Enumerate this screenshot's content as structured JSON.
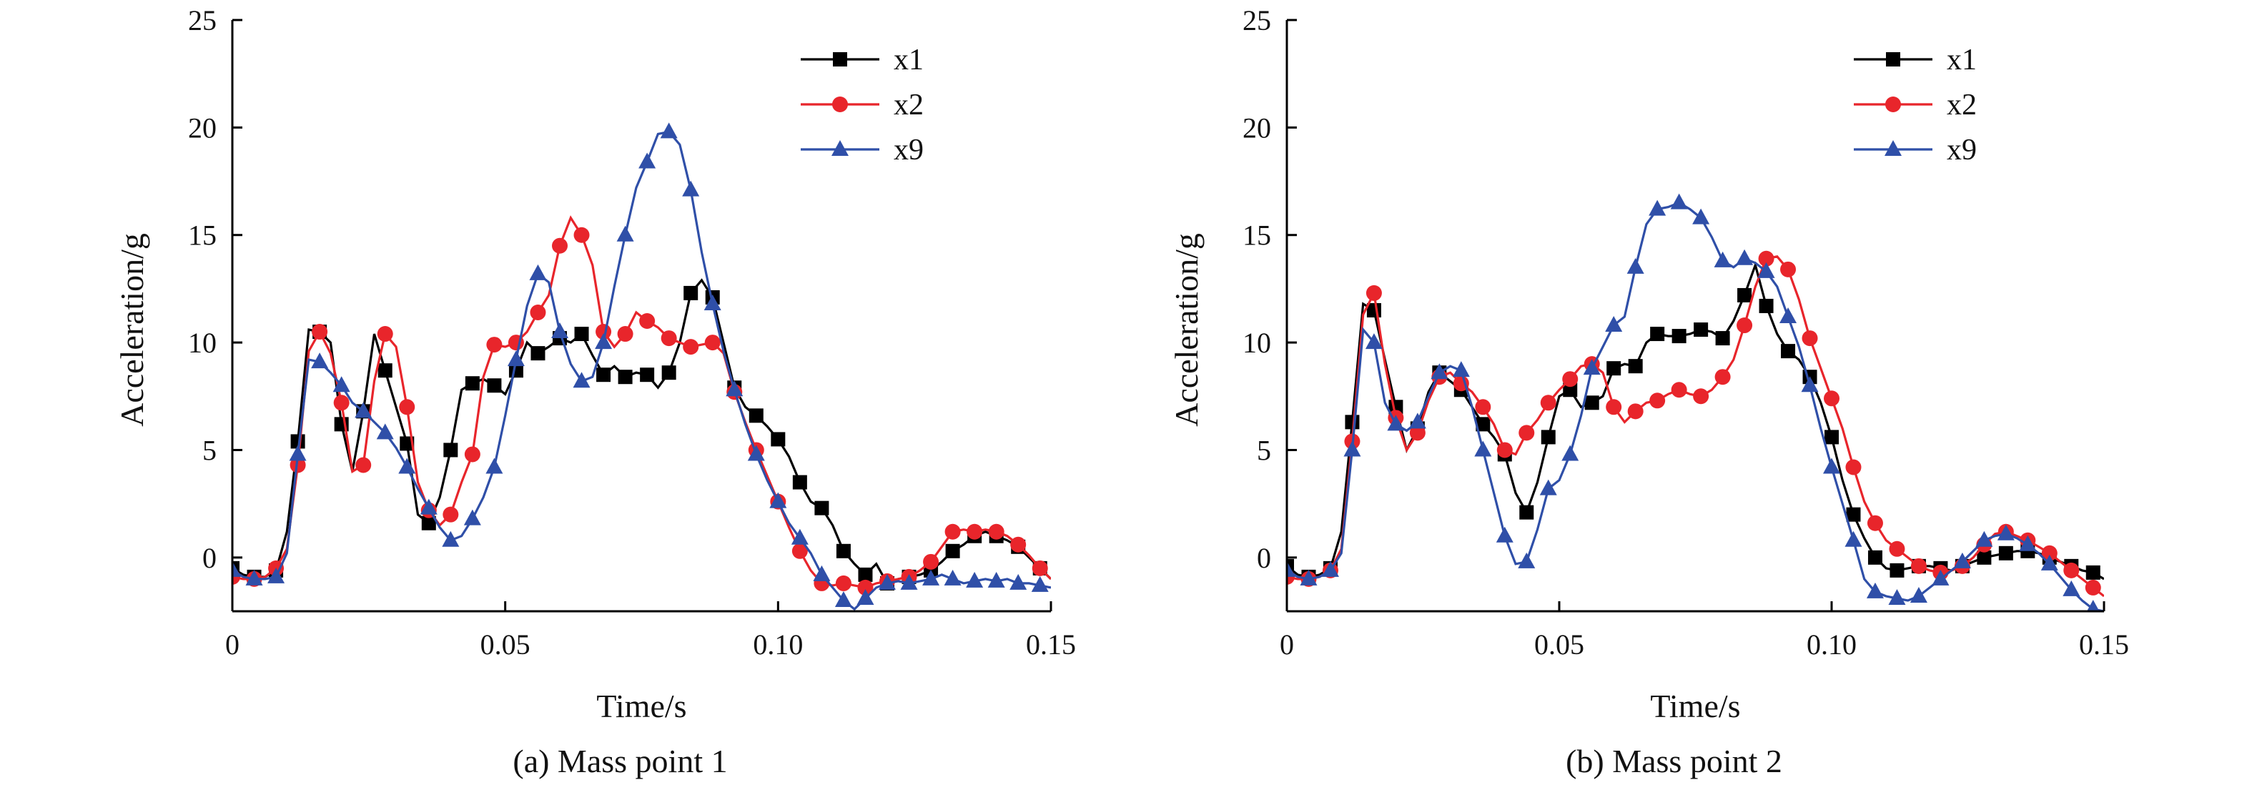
{
  "figure": {
    "colors": {
      "x1": "#000000",
      "x2": "#e8252b",
      "x9": "#2f4fa8",
      "axis": "#000000"
    }
  },
  "chart_data": [
    {
      "type": "line",
      "caption": "(a) Mass point 1",
      "xlabel": "Time/s",
      "ylabel": "Acceleration/g",
      "xlim": [
        0,
        0.15
      ],
      "ylim": [
        -2.5,
        25
      ],
      "xticks": [
        0,
        0.05,
        0.1,
        0.15
      ],
      "xtick_labels": [
        "0",
        "0.05",
        "0.10",
        "0.15"
      ],
      "yticks": [
        0,
        5,
        10,
        15,
        20,
        25
      ],
      "ytick_labels": [
        "0",
        "5",
        "10",
        "15",
        "20",
        "25"
      ],
      "grid": false,
      "legend": "top-right",
      "series": [
        {
          "name": "x1",
          "marker": "square",
          "color": "#000000",
          "x": [
            0,
            0.002,
            0.004,
            0.006,
            0.008,
            0.01,
            0.012,
            0.014,
            0.016,
            0.018,
            0.02,
            0.022,
            0.024,
            0.026,
            0.028,
            0.03,
            0.032,
            0.034,
            0.036,
            0.038,
            0.04,
            0.042,
            0.044,
            0.046,
            0.048,
            0.05,
            0.052,
            0.054,
            0.056,
            0.058,
            0.06,
            0.062,
            0.064,
            0.066,
            0.068,
            0.07,
            0.072,
            0.074,
            0.076,
            0.078,
            0.08,
            0.082,
            0.084,
            0.086,
            0.088,
            0.09,
            0.092,
            0.094,
            0.096,
            0.098,
            0.1,
            0.102,
            0.104,
            0.106,
            0.108,
            0.11,
            0.112,
            0.114,
            0.116,
            0.118,
            0.12,
            0.122,
            0.124,
            0.126,
            0.128,
            0.13,
            0.132,
            0.134,
            0.136,
            0.138,
            0.14,
            0.142,
            0.144,
            0.146,
            0.148,
            0.15
          ],
          "y": [
            -0.5,
            -0.8,
            -0.9,
            -0.9,
            -0.6,
            1.2,
            5.4,
            10.6,
            10.5,
            10.0,
            6.2,
            4.0,
            6.8,
            10.4,
            8.7,
            7.0,
            5.3,
            2.0,
            1.6,
            2.8,
            5.0,
            7.8,
            8.1,
            8.3,
            8.0,
            7.6,
            8.7,
            10.0,
            9.5,
            9.8,
            10.2,
            10.0,
            10.4,
            9.4,
            8.5,
            8.9,
            8.4,
            8.6,
            8.5,
            7.9,
            8.6,
            10.0,
            12.3,
            12.9,
            12.1,
            10.0,
            7.9,
            7.0,
            6.6,
            6.1,
            5.5,
            4.7,
            3.5,
            2.6,
            2.3,
            1.5,
            0.3,
            -0.3,
            -0.8,
            -0.3,
            -1.2,
            -1.0,
            -0.9,
            -0.8,
            -0.6,
            -0.2,
            0.3,
            0.6,
            1.0,
            1.2,
            1.0,
            0.8,
            0.5,
            0.0,
            -0.5,
            -1.0
          ]
        },
        {
          "name": "x2",
          "marker": "circle",
          "color": "#e8252b",
          "x": [
            0,
            0.002,
            0.004,
            0.006,
            0.008,
            0.01,
            0.012,
            0.014,
            0.016,
            0.018,
            0.02,
            0.022,
            0.024,
            0.026,
            0.028,
            0.03,
            0.032,
            0.034,
            0.036,
            0.038,
            0.04,
            0.042,
            0.044,
            0.046,
            0.048,
            0.05,
            0.052,
            0.054,
            0.056,
            0.058,
            0.06,
            0.062,
            0.064,
            0.066,
            0.068,
            0.07,
            0.072,
            0.074,
            0.076,
            0.078,
            0.08,
            0.082,
            0.084,
            0.086,
            0.088,
            0.09,
            0.092,
            0.094,
            0.096,
            0.098,
            0.1,
            0.102,
            0.104,
            0.106,
            0.108,
            0.11,
            0.112,
            0.114,
            0.116,
            0.118,
            0.12,
            0.122,
            0.124,
            0.126,
            0.128,
            0.13,
            0.132,
            0.134,
            0.136,
            0.138,
            0.14,
            0.142,
            0.144,
            0.146,
            0.148,
            0.15
          ],
          "y": [
            -0.9,
            -1.0,
            -1.0,
            -0.9,
            -0.5,
            0.4,
            4.3,
            9.6,
            10.5,
            9.5,
            7.2,
            4.0,
            4.3,
            8.2,
            10.4,
            9.8,
            7.0,
            3.5,
            2.2,
            1.5,
            2.0,
            3.5,
            4.8,
            8.4,
            9.9,
            9.8,
            10.0,
            10.5,
            11.4,
            12.2,
            14.5,
            15.8,
            15.0,
            13.6,
            10.5,
            9.8,
            10.4,
            11.4,
            11.0,
            10.7,
            10.2,
            10.0,
            9.8,
            9.9,
            10.0,
            9.5,
            7.7,
            6.3,
            5.0,
            3.8,
            2.6,
            1.4,
            0.3,
            -0.6,
            -1.2,
            -1.3,
            -1.2,
            -1.3,
            -1.4,
            -1.2,
            -1.1,
            -1.0,
            -0.9,
            -0.6,
            -0.2,
            0.5,
            1.2,
            1.3,
            1.2,
            1.3,
            1.2,
            1.0,
            0.6,
            0.1,
            -0.5,
            -1.0
          ]
        },
        {
          "name": "x9",
          "marker": "triangle",
          "color": "#2f4fa8",
          "x": [
            0,
            0.002,
            0.004,
            0.006,
            0.008,
            0.01,
            0.012,
            0.014,
            0.016,
            0.018,
            0.02,
            0.022,
            0.024,
            0.026,
            0.028,
            0.03,
            0.032,
            0.034,
            0.036,
            0.038,
            0.04,
            0.042,
            0.044,
            0.046,
            0.048,
            0.05,
            0.052,
            0.054,
            0.056,
            0.058,
            0.06,
            0.062,
            0.064,
            0.066,
            0.068,
            0.07,
            0.072,
            0.074,
            0.076,
            0.078,
            0.08,
            0.082,
            0.084,
            0.086,
            0.088,
            0.09,
            0.092,
            0.094,
            0.096,
            0.098,
            0.1,
            0.102,
            0.104,
            0.106,
            0.108,
            0.11,
            0.112,
            0.114,
            0.116,
            0.118,
            0.12,
            0.122,
            0.124,
            0.126,
            0.128,
            0.13,
            0.132,
            0.134,
            0.136,
            0.138,
            0.14,
            0.142,
            0.144,
            0.146,
            0.148,
            0.15
          ],
          "y": [
            -0.6,
            -0.9,
            -1.0,
            -1.0,
            -0.9,
            0.2,
            4.8,
            9.2,
            9.1,
            8.6,
            8.0,
            7.2,
            6.8,
            6.3,
            5.8,
            5.1,
            4.2,
            3.2,
            2.3,
            1.4,
            0.8,
            1.0,
            1.8,
            2.8,
            4.2,
            6.6,
            9.2,
            11.7,
            13.2,
            12.8,
            10.5,
            9.0,
            8.2,
            8.4,
            10.0,
            12.6,
            15.0,
            17.2,
            18.4,
            19.7,
            19.8,
            19.2,
            17.1,
            14.2,
            11.8,
            9.6,
            7.8,
            6.2,
            4.8,
            3.6,
            2.6,
            1.6,
            0.9,
            0.2,
            -0.8,
            -1.4,
            -2.0,
            -2.4,
            -1.9,
            -1.4,
            -1.2,
            -1.1,
            -1.2,
            -1.1,
            -1.0,
            -0.8,
            -1.0,
            -1.2,
            -1.1,
            -1.0,
            -1.1,
            -1.0,
            -1.2,
            -1.2,
            -1.3,
            -1.4
          ]
        }
      ]
    },
    {
      "type": "line",
      "caption": "(b) Mass point 2",
      "xlabel": "Time/s",
      "ylabel": "Acceleration/g",
      "xlim": [
        0,
        0.15
      ],
      "ylim": [
        -2.5,
        25
      ],
      "xticks": [
        0,
        0.05,
        0.1,
        0.15
      ],
      "xtick_labels": [
        "0",
        "0.05",
        "0.10",
        "0.15"
      ],
      "yticks": [
        0,
        5,
        10,
        15,
        20,
        25
      ],
      "ytick_labels": [
        "0",
        "5",
        "10",
        "15",
        "20",
        "25"
      ],
      "grid": false,
      "legend": "top-right",
      "series": [
        {
          "name": "x1",
          "marker": "square",
          "color": "#000000",
          "x": [
            0,
            0.002,
            0.004,
            0.006,
            0.008,
            0.01,
            0.012,
            0.014,
            0.016,
            0.018,
            0.02,
            0.022,
            0.024,
            0.026,
            0.028,
            0.03,
            0.032,
            0.034,
            0.036,
            0.038,
            0.04,
            0.042,
            0.044,
            0.046,
            0.048,
            0.05,
            0.052,
            0.054,
            0.056,
            0.058,
            0.06,
            0.062,
            0.064,
            0.066,
            0.068,
            0.07,
            0.072,
            0.074,
            0.076,
            0.078,
            0.08,
            0.082,
            0.084,
            0.086,
            0.088,
            0.09,
            0.092,
            0.094,
            0.096,
            0.098,
            0.1,
            0.102,
            0.104,
            0.106,
            0.108,
            0.11,
            0.112,
            0.114,
            0.116,
            0.118,
            0.12,
            0.122,
            0.124,
            0.126,
            0.128,
            0.13,
            0.132,
            0.134,
            0.136,
            0.138,
            0.14,
            0.142,
            0.144,
            0.146,
            0.148,
            0.15
          ],
          "y": [
            -0.4,
            -0.8,
            -0.9,
            -0.8,
            -0.5,
            1.2,
            6.3,
            11.8,
            11.5,
            9.2,
            7.0,
            5.0,
            6.0,
            7.7,
            8.6,
            8.2,
            7.8,
            7.0,
            6.2,
            5.6,
            4.8,
            3.0,
            2.1,
            3.5,
            5.6,
            7.5,
            7.8,
            7.0,
            7.2,
            7.5,
            8.8,
            9.0,
            8.9,
            10.0,
            10.4,
            10.3,
            10.3,
            10.4,
            10.6,
            10.5,
            10.2,
            11.0,
            12.2,
            13.6,
            11.7,
            10.4,
            9.6,
            9.2,
            8.4,
            7.2,
            5.6,
            3.6,
            2.0,
            0.9,
            0.0,
            -0.5,
            -0.6,
            -0.5,
            -0.4,
            -0.4,
            -0.5,
            -0.6,
            -0.4,
            -0.2,
            0.0,
            0.1,
            0.2,
            0.3,
            0.3,
            0.2,
            0.0,
            -0.2,
            -0.4,
            -0.6,
            -0.7,
            -1.0
          ]
        },
        {
          "name": "x2",
          "marker": "circle",
          "color": "#e8252b",
          "x": [
            0,
            0.002,
            0.004,
            0.006,
            0.008,
            0.01,
            0.012,
            0.014,
            0.016,
            0.018,
            0.02,
            0.022,
            0.024,
            0.026,
            0.028,
            0.03,
            0.032,
            0.034,
            0.036,
            0.038,
            0.04,
            0.042,
            0.044,
            0.046,
            0.048,
            0.05,
            0.052,
            0.054,
            0.056,
            0.058,
            0.06,
            0.062,
            0.064,
            0.066,
            0.068,
            0.07,
            0.072,
            0.074,
            0.076,
            0.078,
            0.08,
            0.082,
            0.084,
            0.086,
            0.088,
            0.09,
            0.092,
            0.094,
            0.096,
            0.098,
            0.1,
            0.102,
            0.104,
            0.106,
            0.108,
            0.11,
            0.112,
            0.114,
            0.116,
            0.118,
            0.12,
            0.122,
            0.124,
            0.126,
            0.128,
            0.13,
            0.132,
            0.134,
            0.136,
            0.138,
            0.14,
            0.142,
            0.144,
            0.146,
            0.148,
            0.15
          ],
          "y": [
            -0.9,
            -1.0,
            -1.0,
            -0.9,
            -0.6,
            0.4,
            5.4,
            11.3,
            12.3,
            9.0,
            6.5,
            5.0,
            5.8,
            7.3,
            8.4,
            8.6,
            8.1,
            7.7,
            7.0,
            6.2,
            5.0,
            4.8,
            5.8,
            6.4,
            7.2,
            7.8,
            8.3,
            8.9,
            9.0,
            8.6,
            7.0,
            6.3,
            6.8,
            7.2,
            7.3,
            7.6,
            7.8,
            7.6,
            7.5,
            7.8,
            8.4,
            9.2,
            10.8,
            12.6,
            13.9,
            14.0,
            13.4,
            12.0,
            10.2,
            8.8,
            7.4,
            6.0,
            4.2,
            2.6,
            1.6,
            0.8,
            0.4,
            0.0,
            -0.4,
            -0.6,
            -0.7,
            -0.6,
            -0.4,
            0.0,
            0.6,
            1.1,
            1.2,
            1.0,
            0.8,
            0.5,
            0.2,
            -0.2,
            -0.6,
            -1.0,
            -1.4,
            -1.8
          ]
        },
        {
          "name": "x9",
          "marker": "triangle",
          "color": "#2f4fa8",
          "x": [
            0,
            0.002,
            0.004,
            0.006,
            0.008,
            0.01,
            0.012,
            0.014,
            0.016,
            0.018,
            0.02,
            0.022,
            0.024,
            0.026,
            0.028,
            0.03,
            0.032,
            0.034,
            0.036,
            0.038,
            0.04,
            0.042,
            0.044,
            0.046,
            0.048,
            0.05,
            0.052,
            0.054,
            0.056,
            0.058,
            0.06,
            0.062,
            0.064,
            0.066,
            0.068,
            0.07,
            0.072,
            0.074,
            0.076,
            0.078,
            0.08,
            0.082,
            0.084,
            0.086,
            0.088,
            0.09,
            0.092,
            0.094,
            0.096,
            0.098,
            0.1,
            0.102,
            0.104,
            0.106,
            0.108,
            0.11,
            0.112,
            0.114,
            0.116,
            0.118,
            0.12,
            0.122,
            0.124,
            0.126,
            0.128,
            0.13,
            0.132,
            0.134,
            0.136,
            0.138,
            0.14,
            0.142,
            0.144,
            0.146,
            0.148,
            0.15
          ],
          "y": [
            -0.6,
            -0.9,
            -1.0,
            -0.9,
            -0.6,
            0.2,
            5.0,
            10.6,
            10.0,
            7.2,
            6.2,
            5.9,
            6.3,
            7.5,
            8.6,
            8.9,
            8.7,
            7.0,
            5.0,
            3.0,
            1.0,
            -0.3,
            -0.2,
            1.3,
            3.2,
            3.6,
            4.8,
            6.6,
            8.8,
            9.8,
            10.8,
            11.2,
            13.5,
            15.5,
            16.2,
            16.3,
            16.5,
            16.2,
            15.8,
            14.9,
            13.8,
            13.5,
            13.9,
            13.7,
            13.3,
            12.6,
            11.2,
            9.8,
            8.0,
            6.0,
            4.2,
            2.5,
            0.8,
            -1.0,
            -1.6,
            -1.8,
            -1.9,
            -2.0,
            -1.8,
            -1.4,
            -1.0,
            -0.6,
            -0.2,
            0.3,
            0.8,
            1.0,
            1.1,
            0.9,
            0.6,
            0.2,
            -0.3,
            -0.9,
            -1.5,
            -2.0,
            -2.4,
            -2.5
          ]
        }
      ]
    }
  ]
}
